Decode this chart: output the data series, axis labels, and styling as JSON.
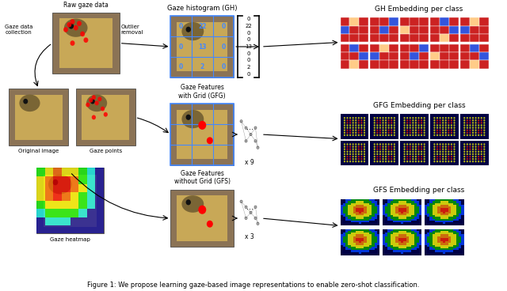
{
  "title": "Figure 1: We propose learning gaze-based image representations to enable zero-shot classification.",
  "background_color": "#ffffff",
  "section_labels": {
    "raw_gaze": "Raw gaze data",
    "gaze_data_collection": "Gaze data\ncollection",
    "outlier_removal": "Outlier\nremoval",
    "original_image": "Original image",
    "gaze_points": "Gaze points",
    "gaze_heatmap": "Gaze heatmap",
    "gh_label": "Gaze histogram (GH)",
    "gfg_label": "Gaze Features\nwith Grid (GFG)",
    "gfs_label": "Gaze Features\nwithout Grid (GFS)",
    "gh_embed": "GH Embedding per class",
    "gfg_embed": "GFG Embedding per class",
    "gfs_embed": "GFS Embedding per class",
    "x9": "x 9",
    "x3": "x 3",
    "dots": "..."
  }
}
